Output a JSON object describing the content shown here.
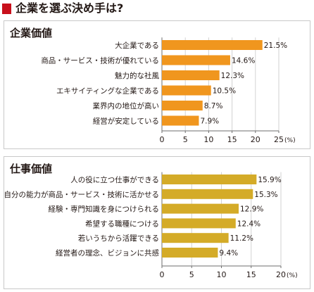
{
  "title": "企業を選ぶ決め手は?",
  "colors": {
    "title_marker": "#c8101c",
    "series_1": "#f0961e",
    "series_2": "#d4ab28",
    "axis": "#6e6e6e"
  },
  "chart_data": [
    {
      "type": "bar",
      "orientation": "horizontal",
      "title": "企業価値",
      "categories": [
        "大企業である",
        "商品・サービス・技術が優れている",
        "魅力的な社風",
        "エキサイティングな企業である",
        "業界内の地位が高い",
        "経営が安定している"
      ],
      "values": [
        21.5,
        14.6,
        12.3,
        10.5,
        8.7,
        7.9
      ],
      "value_labels": [
        "21.5%",
        "14.6%",
        "12.3%",
        "10.5%",
        "8.7%",
        "7.9%"
      ],
      "xlim": [
        0,
        25
      ],
      "xticks": [
        0,
        5,
        10,
        15,
        20,
        25
      ],
      "unit": "(%)",
      "grid": true,
      "color": "#f0961e"
    },
    {
      "type": "bar",
      "orientation": "horizontal",
      "title": "仕事価値",
      "categories": [
        "人の役に立つ仕事ができる",
        "自分の能力が商品・サービス・技術に活かせる",
        "経験・専門知識を身につけられる",
        "希望する職種につける",
        "若いうちから活躍できる",
        "経営者の理念、ビジョンに共感"
      ],
      "values": [
        15.9,
        15.3,
        12.9,
        12.4,
        11.2,
        9.4
      ],
      "value_labels": [
        "15.9%",
        "15.3%",
        "12.9%",
        "12.4%",
        "11.2%",
        "9.4%"
      ],
      "xlim": [
        0,
        20
      ],
      "xticks": [
        0,
        5,
        10,
        15,
        20
      ],
      "unit": "(%)",
      "grid": true,
      "color": "#d4ab28"
    }
  ]
}
